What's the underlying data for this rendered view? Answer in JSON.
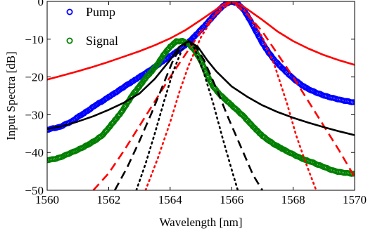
{
  "chart_data": {
    "type": "line",
    "xlabel": "Wavelength [nm]",
    "ylabel": "Input Spectra [dB]",
    "xlim": [
      1560,
      1570
    ],
    "ylim": [
      -50,
      0
    ],
    "xticks": [
      1560,
      1562,
      1564,
      1566,
      1568,
      1570
    ],
    "yticks": [
      0,
      -10,
      -20,
      -30,
      -40,
      -50
    ],
    "grid": false,
    "legend": {
      "placement": "top-left",
      "entries": [
        "Pump",
        "Signal"
      ]
    },
    "series": [
      {
        "name": "Pump",
        "style": "markers",
        "color": "#0000ff",
        "x": [
          1560.0,
          1560.2,
          1560.4,
          1560.6,
          1560.8,
          1561.0,
          1561.2,
          1561.4,
          1561.6,
          1561.8,
          1562.0,
          1562.2,
          1562.4,
          1562.6,
          1562.8,
          1563.0,
          1563.2,
          1563.4,
          1563.6,
          1563.8,
          1564.0,
          1564.2,
          1564.4,
          1564.6,
          1564.8,
          1565.0,
          1565.2,
          1565.4,
          1565.6,
          1565.8,
          1566.0,
          1566.2,
          1566.4,
          1566.6,
          1566.8,
          1567.0,
          1567.2,
          1567.4,
          1567.6,
          1567.8,
          1568.0,
          1568.2,
          1568.4,
          1568.6,
          1568.8,
          1569.0,
          1569.2,
          1569.4,
          1569.6,
          1569.8,
          1570.0
        ],
        "y": [
          -34,
          -33.6,
          -33.3,
          -32.5,
          -31.8,
          -30.6,
          -29.6,
          -28.5,
          -27.3,
          -26.4,
          -25.3,
          -24.3,
          -23.2,
          -22.1,
          -21.1,
          -20,
          -19,
          -17.9,
          -16.8,
          -15.6,
          -14.5,
          -13.4,
          -12.2,
          -10.8,
          -9.2,
          -7.5,
          -5.8,
          -3.9,
          -2.1,
          -0.7,
          0,
          -0.6,
          -2.3,
          -5,
          -8,
          -11,
          -13.5,
          -15.6,
          -17.3,
          -18.9,
          -20.4,
          -21.7,
          -22.8,
          -23.6,
          -24.3,
          -24.9,
          -25.4,
          -25.8,
          -26.2,
          -26.5,
          -26.8
        ]
      },
      {
        "name": "Signal",
        "style": "markers",
        "color": "#007f00",
        "x": [
          1560.0,
          1560.2,
          1560.4,
          1560.6,
          1560.8,
          1561.0,
          1561.2,
          1561.4,
          1561.6,
          1561.8,
          1562.0,
          1562.2,
          1562.4,
          1562.6,
          1562.8,
          1563.0,
          1563.2,
          1563.4,
          1563.6,
          1563.8,
          1564.0,
          1564.2,
          1564.4,
          1564.6,
          1564.8,
          1565.0,
          1565.2,
          1565.4,
          1565.6,
          1565.8,
          1566.0,
          1566.2,
          1566.4,
          1566.6,
          1566.8,
          1567.0,
          1567.2,
          1567.4,
          1567.6,
          1567.8,
          1568.0,
          1568.2,
          1568.4,
          1568.6,
          1568.8,
          1569.0,
          1569.2,
          1569.4,
          1569.6,
          1569.8,
          1570.0
        ],
        "y": [
          -42,
          -41.8,
          -41.4,
          -40.7,
          -40,
          -39.3,
          -38.5,
          -37.6,
          -36.6,
          -35.4,
          -33.5,
          -31.5,
          -29.5,
          -27,
          -24.5,
          -22.5,
          -20.3,
          -18.5,
          -16.5,
          -14,
          -12,
          -10.6,
          -10.5,
          -11.2,
          -13,
          -15.6,
          -19.5,
          -22.5,
          -24.5,
          -26,
          -27.5,
          -29,
          -30.5,
          -32.3,
          -34,
          -35.6,
          -36.8,
          -37.9,
          -38.8,
          -39.7,
          -40.5,
          -41.3,
          -42,
          -42.5,
          -43.2,
          -43.8,
          -44.5,
          -45,
          -45.3,
          -45.5,
          -45.7
        ]
      },
      {
        "name": "",
        "style": "solid",
        "color": "#ff0000",
        "x": [
          1560.0,
          1560.5,
          1561.0,
          1561.5,
          1562.0,
          1562.5,
          1563.0,
          1563.5,
          1564.0,
          1564.5,
          1565.0,
          1565.5,
          1565.75,
          1566.0,
          1566.25,
          1566.5,
          1567.0,
          1567.5,
          1568.0,
          1568.5,
          1569.0,
          1569.5,
          1570.0
        ],
        "y": [
          -20.7,
          -19.6,
          -18.5,
          -17.3,
          -16,
          -14.6,
          -13.2,
          -11.6,
          -9.8,
          -7.6,
          -4.9,
          -2.1,
          -0.7,
          0,
          -0.7,
          -2,
          -4.9,
          -8,
          -10.5,
          -12.5,
          -14.2,
          -15.6,
          -16.8
        ]
      },
      {
        "name": "",
        "style": "dashed",
        "color": "#ff0000",
        "x": [
          1561.5,
          1562.0,
          1562.5,
          1563.0,
          1563.5,
          1564.0,
          1564.5,
          1565.0,
          1565.5,
          1566.0,
          1566.5,
          1567.0,
          1567.5,
          1568.0,
          1568.5,
          1569.0,
          1569.5,
          1570.0
        ],
        "y": [
          -50,
          -45.5,
          -39.5,
          -33,
          -26.5,
          -20,
          -14,
          -8,
          -3.3,
          0,
          -3.3,
          -8,
          -14,
          -20,
          -26.5,
          -33,
          -39.5,
          -46.5
        ]
      },
      {
        "name": "",
        "style": "dotted",
        "color": "#ff0000",
        "x": [
          1563.2,
          1563.6,
          1564.0,
          1564.3,
          1564.6,
          1565.0,
          1565.5,
          1566.0,
          1566.5,
          1567.0,
          1567.4,
          1567.8,
          1568.1,
          1568.4,
          1568.75
        ],
        "y": [
          -50,
          -41.5,
          -32,
          -24,
          -17,
          -9.5,
          -3,
          0,
          -3,
          -9.5,
          -17,
          -27,
          -35.5,
          -42.5,
          -50
        ]
      },
      {
        "name": "",
        "style": "solid",
        "color": "#000000",
        "x": [
          1560.0,
          1560.5,
          1561.0,
          1561.5,
          1562.0,
          1562.5,
          1563.0,
          1563.5,
          1564.0,
          1564.3,
          1564.6,
          1564.9,
          1565.2,
          1565.5,
          1566.0,
          1566.5,
          1567.0,
          1567.5,
          1568.0,
          1568.5,
          1569.0,
          1569.5,
          1570.0
        ],
        "y": [
          -33.8,
          -33,
          -31.8,
          -30.4,
          -28.7,
          -26.8,
          -24.4,
          -20.5,
          -15.5,
          -12,
          -10.5,
          -12,
          -15.5,
          -18.5,
          -22.5,
          -25.2,
          -27.5,
          -29.3,
          -30.8,
          -32.1,
          -33.3,
          -34.4,
          -35.4
        ]
      },
      {
        "name": "",
        "style": "dashed",
        "color": "#000000",
        "x": [
          1562.2,
          1562.6,
          1563.0,
          1563.4,
          1563.8,
          1564.1,
          1564.4,
          1564.6,
          1564.8,
          1565.1,
          1565.5,
          1565.9,
          1566.3,
          1566.7,
          1567.0
        ],
        "y": [
          -50,
          -44,
          -37,
          -29.5,
          -21.5,
          -15.5,
          -11.5,
          -10.5,
          -11.5,
          -15.5,
          -23,
          -31,
          -38.5,
          -46,
          -50
        ]
      },
      {
        "name": "",
        "style": "dotted",
        "color": "#000000",
        "x": [
          1562.9,
          1563.2,
          1563.5,
          1563.8,
          1564.1,
          1564.4,
          1564.6,
          1564.8,
          1565.1,
          1565.4,
          1565.7,
          1566.0,
          1566.2
        ],
        "y": [
          -50,
          -43,
          -35,
          -26.5,
          -18.5,
          -12.5,
          -10.5,
          -12.5,
          -19,
          -27,
          -36,
          -44.5,
          -50
        ]
      }
    ]
  }
}
